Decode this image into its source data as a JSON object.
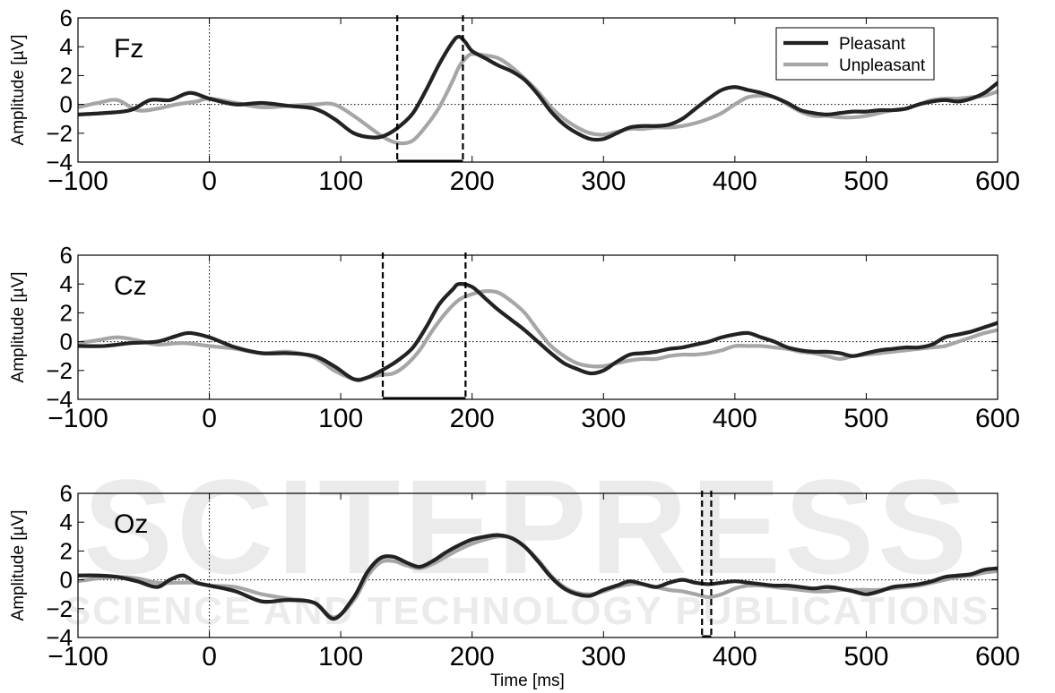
{
  "watermark": {
    "main": "SCITEPRESS",
    "sub": "SCIENCE AND TECHNOLOGY PUBLICATIONS"
  },
  "chart_data": [
    {
      "type": "line",
      "title": "Fz",
      "xlabel": "",
      "ylabel": "Amplitude [µV]",
      "xlim": [
        -100,
        600
      ],
      "ylim": [
        -4,
        6
      ],
      "xticks": [
        -100,
        0,
        100,
        200,
        300,
        400,
        500,
        600
      ],
      "yticks": [
        -4,
        -2,
        0,
        2,
        4,
        6
      ],
      "grid": false,
      "legend": "top-right",
      "markers": [
        143,
        193
      ],
      "series": [
        {
          "name": "Pleasant",
          "color": "#222222",
          "x": [
            -100,
            -80,
            -60,
            -45,
            -30,
            -15,
            0,
            20,
            40,
            60,
            80,
            95,
            110,
            125,
            135,
            145,
            155,
            165,
            175,
            185,
            190,
            195,
            200,
            210,
            220,
            230,
            240,
            250,
            260,
            270,
            280,
            290,
            300,
            310,
            320,
            330,
            340,
            350,
            360,
            370,
            380,
            390,
            400,
            410,
            420,
            430,
            440,
            450,
            460,
            470,
            480,
            490,
            500,
            510,
            520,
            530,
            540,
            550,
            560,
            570,
            580,
            590,
            600
          ],
          "y": [
            -0.7,
            -0.6,
            -0.4,
            0.3,
            0.3,
            0.8,
            0.4,
            0.0,
            0.1,
            -0.1,
            -0.3,
            -1.0,
            -2.0,
            -2.3,
            -2.1,
            -1.5,
            -0.6,
            1.0,
            2.8,
            4.3,
            4.7,
            4.3,
            3.7,
            3.2,
            2.7,
            2.3,
            1.7,
            0.7,
            -0.5,
            -1.4,
            -2.0,
            -2.4,
            -2.4,
            -2.0,
            -1.6,
            -1.5,
            -1.5,
            -1.4,
            -1.0,
            -0.3,
            0.4,
            1.0,
            1.2,
            1.0,
            0.8,
            0.5,
            0.1,
            -0.4,
            -0.6,
            -0.7,
            -0.6,
            -0.5,
            -0.5,
            -0.4,
            -0.4,
            -0.3,
            0.0,
            0.2,
            0.3,
            0.2,
            0.4,
            0.8,
            1.5
          ]
        },
        {
          "name": "Unpleasant",
          "color": "#a6a6a6",
          "x": [
            -100,
            -85,
            -70,
            -55,
            -40,
            -25,
            -10,
            0,
            20,
            40,
            60,
            80,
            95,
            110,
            125,
            135,
            145,
            155,
            165,
            175,
            185,
            190,
            195,
            200,
            210,
            220,
            230,
            240,
            250,
            260,
            270,
            280,
            290,
            300,
            310,
            320,
            330,
            340,
            350,
            360,
            370,
            380,
            390,
            400,
            410,
            420,
            430,
            440,
            450,
            460,
            470,
            480,
            490,
            500,
            510,
            520,
            530,
            540,
            550,
            560,
            570,
            580,
            590,
            600
          ],
          "y": [
            -0.2,
            0.1,
            0.3,
            -0.4,
            -0.3,
            0.0,
            0.2,
            0.4,
            0.1,
            -0.2,
            -0.1,
            0.0,
            0.0,
            -0.8,
            -1.8,
            -2.4,
            -2.7,
            -2.5,
            -1.5,
            -0.2,
            1.6,
            2.6,
            3.2,
            3.5,
            3.4,
            3.2,
            2.6,
            1.8,
            0.9,
            -0.2,
            -1.0,
            -1.6,
            -2.0,
            -2.1,
            -1.9,
            -1.7,
            -1.7,
            -1.6,
            -1.6,
            -1.5,
            -1.3,
            -1.0,
            -0.6,
            0.0,
            0.5,
            0.6,
            0.5,
            0.0,
            -0.5,
            -0.8,
            -0.8,
            -0.9,
            -0.9,
            -0.8,
            -0.6,
            -0.4,
            -0.3,
            0.0,
            0.3,
            0.4,
            0.4,
            0.5,
            0.6,
            0.9
          ]
        }
      ]
    },
    {
      "type": "line",
      "title": "Cz",
      "xlabel": "",
      "ylabel": "Amplitude [µV]",
      "xlim": [
        -100,
        600
      ],
      "ylim": [
        -4,
        6
      ],
      "xticks": [
        -100,
        0,
        100,
        200,
        300,
        400,
        500,
        600
      ],
      "yticks": [
        -4,
        -2,
        0,
        2,
        4,
        6
      ],
      "grid": false,
      "markers": [
        132,
        195
      ],
      "series": [
        {
          "name": "Pleasant",
          "color": "#222222",
          "x": [
            -100,
            -80,
            -60,
            -40,
            -25,
            -15,
            0,
            20,
            40,
            60,
            80,
            95,
            110,
            120,
            135,
            145,
            155,
            165,
            175,
            185,
            190,
            200,
            210,
            220,
            230,
            240,
            250,
            260,
            270,
            280,
            290,
            300,
            310,
            320,
            330,
            340,
            350,
            360,
            370,
            380,
            390,
            400,
            410,
            420,
            430,
            440,
            450,
            460,
            470,
            480,
            490,
            500,
            510,
            520,
            530,
            540,
            550,
            560,
            570,
            580,
            590,
            600
          ],
          "y": [
            -0.3,
            -0.3,
            -0.1,
            0.0,
            0.4,
            0.6,
            0.3,
            -0.4,
            -0.8,
            -0.8,
            -1.0,
            -1.7,
            -2.6,
            -2.5,
            -1.8,
            -1.2,
            -0.4,
            1.0,
            2.6,
            3.6,
            4.0,
            3.8,
            3.0,
            2.2,
            1.5,
            0.8,
            0.0,
            -0.8,
            -1.5,
            -1.9,
            -2.2,
            -2.0,
            -1.4,
            -0.9,
            -0.8,
            -0.7,
            -0.5,
            -0.4,
            -0.2,
            0.0,
            0.3,
            0.5,
            0.6,
            0.3,
            0.0,
            -0.4,
            -0.6,
            -0.7,
            -0.7,
            -0.8,
            -1.0,
            -0.8,
            -0.6,
            -0.5,
            -0.4,
            -0.4,
            -0.2,
            0.3,
            0.5,
            0.7,
            1.0,
            1.3
          ]
        },
        {
          "name": "Unpleasant",
          "color": "#a6a6a6",
          "x": [
            -100,
            -85,
            -70,
            -55,
            -40,
            -20,
            0,
            20,
            40,
            60,
            80,
            95,
            110,
            120,
            130,
            140,
            150,
            160,
            170,
            180,
            190,
            200,
            210,
            220,
            230,
            240,
            250,
            260,
            270,
            280,
            290,
            300,
            310,
            320,
            330,
            340,
            350,
            360,
            370,
            380,
            390,
            400,
            410,
            420,
            430,
            440,
            450,
            460,
            470,
            480,
            490,
            500,
            510,
            520,
            530,
            540,
            550,
            560,
            570,
            580,
            590,
            600
          ],
          "y": [
            -0.1,
            0.1,
            0.3,
            0.1,
            -0.2,
            -0.1,
            -0.3,
            -0.5,
            -0.8,
            -0.7,
            -1.1,
            -2.0,
            -2.6,
            -2.5,
            -2.3,
            -2.2,
            -1.6,
            -0.6,
            0.8,
            2.0,
            2.9,
            3.3,
            3.5,
            3.4,
            2.8,
            2.0,
            0.8,
            -0.3,
            -1.0,
            -1.5,
            -1.7,
            -1.7,
            -1.5,
            -1.3,
            -1.2,
            -1.2,
            -1.0,
            -0.9,
            -0.9,
            -0.8,
            -0.6,
            -0.3,
            -0.3,
            -0.3,
            -0.4,
            -0.5,
            -0.7,
            -0.8,
            -1.0,
            -1.2,
            -1.0,
            -0.9,
            -0.8,
            -0.7,
            -0.6,
            -0.5,
            -0.4,
            -0.3,
            0.0,
            0.3,
            0.6,
            0.8
          ]
        }
      ]
    },
    {
      "type": "line",
      "title": "Oz",
      "xlabel": "Time [ms]",
      "ylabel": "Amplitude [µV]",
      "xlim": [
        -100,
        600
      ],
      "ylim": [
        -4,
        6
      ],
      "xticks": [
        -100,
        0,
        100,
        200,
        300,
        400,
        500,
        600
      ],
      "yticks": [
        -4,
        -2,
        0,
        2,
        4,
        6
      ],
      "grid": false,
      "markers": [
        375,
        382
      ],
      "series": [
        {
          "name": "Pleasant",
          "color": "#222222",
          "x": [
            -100,
            -85,
            -70,
            -55,
            -40,
            -30,
            -20,
            -10,
            0,
            20,
            40,
            60,
            80,
            95,
            110,
            120,
            130,
            140,
            150,
            160,
            170,
            180,
            190,
            200,
            210,
            220,
            230,
            240,
            250,
            260,
            270,
            280,
            290,
            300,
            310,
            320,
            330,
            340,
            350,
            360,
            370,
            380,
            390,
            400,
            410,
            420,
            430,
            440,
            450,
            460,
            470,
            480,
            490,
            500,
            510,
            520,
            530,
            540,
            550,
            560,
            570,
            580,
            590,
            600
          ],
          "y": [
            0.3,
            0.3,
            0.2,
            -0.1,
            -0.5,
            0.0,
            0.3,
            -0.2,
            -0.4,
            -0.8,
            -1.5,
            -1.4,
            -1.6,
            -2.7,
            -1.2,
            0.5,
            1.5,
            1.6,
            1.2,
            0.9,
            1.3,
            1.9,
            2.4,
            2.8,
            3.0,
            3.1,
            2.9,
            2.3,
            1.3,
            0.2,
            -0.6,
            -1.0,
            -1.1,
            -0.7,
            -0.4,
            -0.1,
            -0.3,
            -0.5,
            -0.2,
            0.0,
            -0.2,
            -0.3,
            -0.2,
            -0.1,
            -0.2,
            -0.3,
            -0.4,
            -0.4,
            -0.5,
            -0.6,
            -0.5,
            -0.6,
            -0.8,
            -1.0,
            -0.8,
            -0.5,
            -0.4,
            -0.3,
            -0.1,
            0.2,
            0.3,
            0.4,
            0.7,
            0.8
          ]
        },
        {
          "name": "Unpleasant",
          "color": "#a6a6a6",
          "x": [
            -100,
            -85,
            -70,
            -55,
            -40,
            -25,
            -10,
            0,
            20,
            40,
            60,
            80,
            95,
            110,
            120,
            130,
            140,
            150,
            160,
            170,
            180,
            190,
            200,
            210,
            220,
            230,
            240,
            250,
            260,
            270,
            280,
            290,
            300,
            310,
            320,
            330,
            340,
            350,
            360,
            370,
            380,
            390,
            400,
            410,
            420,
            430,
            440,
            450,
            460,
            470,
            480,
            490,
            500,
            510,
            520,
            530,
            540,
            550,
            560,
            570,
            580,
            590,
            600
          ],
          "y": [
            -0.1,
            0.1,
            0.2,
            0.1,
            -0.2,
            -0.2,
            -0.2,
            -0.4,
            -0.5,
            -1.0,
            -1.3,
            -1.6,
            -2.6,
            -1.4,
            0.2,
            1.2,
            1.3,
            1.0,
            0.8,
            1.1,
            1.6,
            2.1,
            2.5,
            2.8,
            3.0,
            2.9,
            2.3,
            1.4,
            0.3,
            -0.5,
            -0.9,
            -1.0,
            -0.8,
            -0.5,
            -0.3,
            -0.3,
            -0.5,
            -0.7,
            -0.8,
            -1.0,
            -1.2,
            -1.0,
            -0.6,
            -0.4,
            -0.4,
            -0.5,
            -0.6,
            -0.7,
            -0.8,
            -0.8,
            -0.7,
            -0.7,
            -0.7,
            -0.7,
            -0.6,
            -0.5,
            -0.4,
            -0.2,
            0.0,
            0.2,
            0.3,
            0.5,
            0.6
          ]
        }
      ]
    }
  ]
}
